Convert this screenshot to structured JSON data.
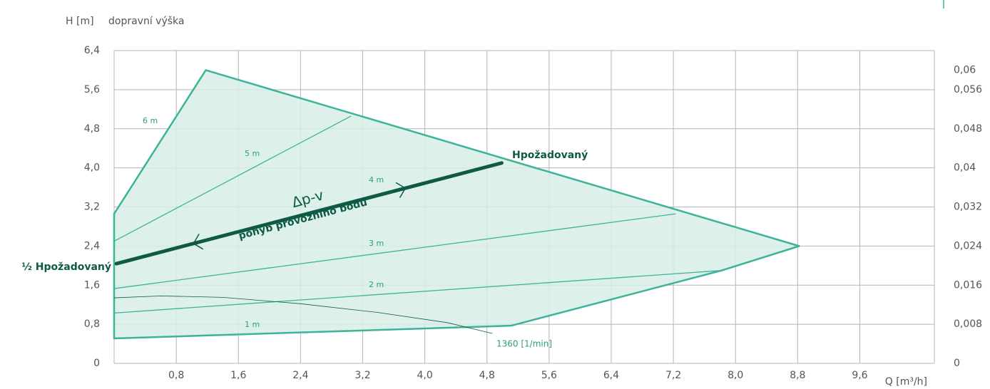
{
  "chart_data": {
    "type": "line",
    "y_label": "H [m]",
    "y_title": "dopravní výška",
    "x_label": "Q [m³/h]",
    "xlim": [
      0,
      10.56
    ],
    "xticks": [
      {
        "value": 0.8,
        "label": "0,8"
      },
      {
        "value": 1.6,
        "label": "1,6"
      },
      {
        "value": 2.4,
        "label": "2,4"
      },
      {
        "value": 3.2,
        "label": "3,2"
      },
      {
        "value": 4.0,
        "label": "4,0"
      },
      {
        "value": 4.8,
        "label": "4,8"
      },
      {
        "value": 5.6,
        "label": "5,6"
      },
      {
        "value": 6.4,
        "label": "6,4"
      },
      {
        "value": 7.2,
        "label": "7,2"
      },
      {
        "value": 8.0,
        "label": "8,0"
      },
      {
        "value": 8.8,
        "label": "8,8"
      },
      {
        "value": 9.6,
        "label": "9,6"
      }
    ],
    "ylim": [
      0,
      6.4
    ],
    "yticks": [
      0,
      {
        "value": 0.8,
        "label": "0,8"
      },
      {
        "value": 1.6,
        "label": "1,6"
      },
      {
        "value": 2.4,
        "label": "2,4"
      },
      {
        "value": 3.2,
        "label": "3,2"
      },
      {
        "value": 4.0,
        "label": "4,0"
      },
      {
        "value": 4.8,
        "label": "4,8"
      },
      {
        "value": 5.6,
        "label": "5,6"
      },
      {
        "value": 6.4,
        "label": "6,4"
      }
    ],
    "y2lim": [
      0,
      0.064
    ],
    "y2ticks": [
      0,
      {
        "value": 0.008,
        "label": "0,008"
      },
      {
        "value": 0.016,
        "label": "0,016"
      },
      {
        "value": 0.024,
        "label": "0,024"
      },
      {
        "value": 0.032,
        "label": "0,032"
      },
      {
        "value": 0.04,
        "label": "0,04"
      },
      {
        "value": 0.048,
        "label": "0,048"
      },
      {
        "value": 0.056,
        "label": "0,056"
      },
      {
        "value": 0.06,
        "label": "0,06"
      }
    ],
    "grid": true,
    "line_color": "#3cb39a",
    "fill_color": "#d7eee6",
    "outline": {
      "x": [
        0,
        0,
        1.18,
        8.82,
        7.82,
        5.11,
        0
      ],
      "values": [
        0.51,
        3.06,
        6.0,
        2.4,
        1.9,
        0.77,
        0.51
      ]
    },
    "lines": [
      {
        "x": [
          0,
          3.05
        ],
        "values": [
          2.5,
          5.06
        ]
      },
      {
        "x": [
          0,
          7.23
        ],
        "values": [
          1.53,
          3.06
        ]
      },
      {
        "x": [
          0,
          7.82
        ],
        "values": [
          1.03,
          1.9
        ]
      }
    ],
    "line_labels": [
      "6 m",
      "5 m",
      "4 m",
      "3 m",
      "2 m",
      "1 m"
    ],
    "speed_curve": {
      "label": "1360 [1/min]",
      "x": [
        0,
        0.6,
        1.4,
        2.4,
        3.4,
        4.3,
        4.87
      ],
      "values": [
        1.34,
        1.38,
        1.35,
        1.22,
        1.04,
        0.83,
        0.61
      ]
    },
    "control_curve": {
      "label": "Δp-v",
      "caption": "pohyb provozního bodu",
      "end_label": "Hpožadovaný",
      "start_label": "½ Hpožadovaný",
      "color": "#0e5a46",
      "x": [
        0.03,
        4.99
      ],
      "values": [
        2.04,
        4.1
      ]
    }
  }
}
